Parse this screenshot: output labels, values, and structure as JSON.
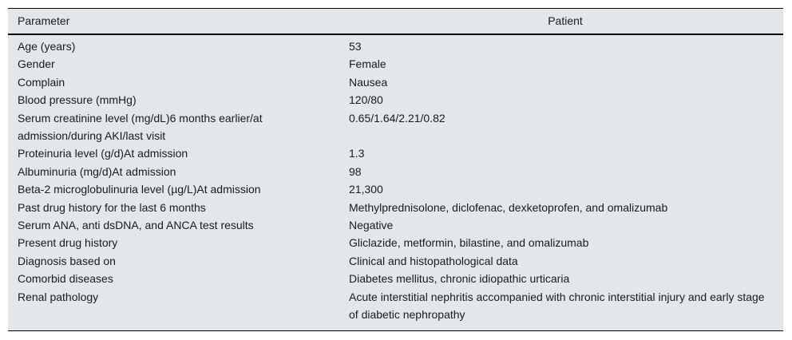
{
  "table": {
    "header": {
      "parameter": "Parameter",
      "patient": "Patient"
    },
    "rows": [
      {
        "parameter": "Age (years)",
        "patient": "53"
      },
      {
        "parameter": "Gender",
        "patient": "Female"
      },
      {
        "parameter": "Complain",
        "patient": "Nausea"
      },
      {
        "parameter": "Blood pressure (mmHg)",
        "patient": "120/80"
      },
      {
        "parameter": "Serum creatinine level (mg/dL)6 months earlier/at admission/during AKI/last visit",
        "patient": "0.65/1.64/2.21/0.82"
      },
      {
        "parameter": "Proteinuria level (g/d)At admission",
        "patient": "1.3"
      },
      {
        "parameter": "Albuminuria (mg/d)At admission",
        "patient": "98"
      },
      {
        "parameter": "Beta-2 microglobulinuria level (µg/L)At admission",
        "patient": "21,300"
      },
      {
        "parameter": "Past drug history for the last 6 months",
        "patient": "Methylprednisolone, diclofenac, dexketoprofen, and omalizumab"
      },
      {
        "parameter": "Serum ANA, anti dsDNA, and ANCA test results",
        "patient": "Negative"
      },
      {
        "parameter": "Present drug history",
        "patient": "Gliclazide, metformin, bilastine, and omalizumab"
      },
      {
        "parameter": "Diagnosis based on",
        "patient": "Clinical and histopathological data"
      },
      {
        "parameter": "Comorbid diseases",
        "patient": "Diabetes mellitus, chronic idiopathic urticaria"
      },
      {
        "parameter": "Renal pathology",
        "patient": "Acute interstitial nephritis accompanied with chronic interstitial injury and early stage of diabetic nephropathy"
      }
    ],
    "colors": {
      "table_background": "#e2e7e9",
      "text": "#1b1b1b",
      "rule": "#000000"
    }
  }
}
